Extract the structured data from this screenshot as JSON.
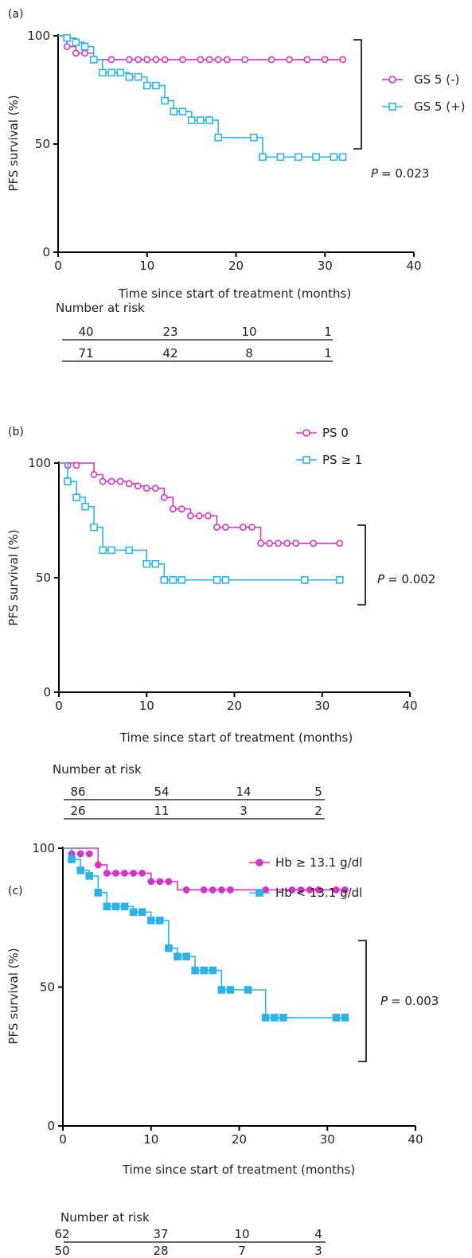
{
  "chart_data": [
    {
      "type": "line",
      "panel_label": "(a)",
      "xlabel": "Time since start of treatment (months)",
      "ylabel": "PFS survival (%)",
      "xlim": [
        0,
        40
      ],
      "ylim": [
        0,
        100
      ],
      "xticks": [
        "0",
        "10",
        "20",
        "30",
        "40"
      ],
      "yticks": [
        "0",
        "50",
        "100"
      ],
      "series": [
        {
          "name": "GS 5 (-)",
          "color": "#d633c8",
          "marker": "circle-open",
          "steps": [
            [
              0,
              100
            ],
            [
              1,
              95
            ],
            [
              2,
              92
            ],
            [
              4,
              89
            ],
            [
              32,
              89
            ]
          ],
          "censor": [
            [
              1,
              95
            ],
            [
              2,
              92
            ],
            [
              3,
              92
            ],
            [
              4,
              89
            ],
            [
              6,
              89
            ],
            [
              8,
              89
            ],
            [
              9,
              89
            ],
            [
              10,
              89
            ],
            [
              11,
              89
            ],
            [
              12,
              89
            ],
            [
              14,
              89
            ],
            [
              16,
              89
            ],
            [
              17,
              89
            ],
            [
              18,
              89
            ],
            [
              19,
              89
            ],
            [
              21,
              89
            ],
            [
              24,
              89
            ],
            [
              26,
              89
            ],
            [
              28,
              89
            ],
            [
              30,
              89
            ],
            [
              32,
              89
            ]
          ]
        },
        {
          "name": "GS 5 (+)",
          "color": "#29b4ea",
          "marker": "square-open",
          "steps": [
            [
              0,
              100
            ],
            [
              1,
              99
            ],
            [
              2,
              97
            ],
            [
              3,
              95
            ],
            [
              4,
              89
            ],
            [
              5,
              83
            ],
            [
              8,
              81
            ],
            [
              10,
              77
            ],
            [
              12,
              70
            ],
            [
              13,
              65
            ],
            [
              15,
              61
            ],
            [
              18,
              53
            ],
            [
              23,
              44
            ],
            [
              32,
              44
            ]
          ],
          "censor": [
            [
              1,
              99
            ],
            [
              2,
              97
            ],
            [
              3,
              95
            ],
            [
              4,
              89
            ],
            [
              5,
              83
            ],
            [
              6,
              83
            ],
            [
              7,
              83
            ],
            [
              8,
              81
            ],
            [
              9,
              81
            ],
            [
              10,
              77
            ],
            [
              11,
              77
            ],
            [
              12,
              70
            ],
            [
              13,
              65
            ],
            [
              14,
              65
            ],
            [
              15,
              61
            ],
            [
              16,
              61
            ],
            [
              17,
              61
            ],
            [
              18,
              53
            ],
            [
              22,
              53
            ],
            [
              23,
              44
            ],
            [
              25,
              44
            ],
            [
              27,
              44
            ],
            [
              29,
              44
            ],
            [
              31,
              44
            ],
            [
              32,
              44
            ]
          ]
        }
      ],
      "pvalue": "= 0.023",
      "p_letter": "P",
      "legend_position": "right",
      "risk_title": "Number at risk",
      "risk_rows": [
        [
          "40",
          "23",
          "10",
          "1"
        ],
        [
          "71",
          "42",
          "8",
          "1"
        ]
      ]
    },
    {
      "type": "line",
      "panel_label": "(b)",
      "xlabel": "Time since start of treatment (months)",
      "ylabel": "PFS survival (%)",
      "xlim": [
        0,
        40
      ],
      "ylim": [
        0,
        100
      ],
      "xticks": [
        "0",
        "10",
        "20",
        "30",
        "40"
      ],
      "yticks": [
        "0",
        "50",
        "100"
      ],
      "series": [
        {
          "name": "PS 0",
          "color": "#d633c8",
          "marker": "circle-open",
          "steps": [
            [
              0,
              100
            ],
            [
              4,
              95
            ],
            [
              5,
              92
            ],
            [
              8,
              91
            ],
            [
              9,
              90
            ],
            [
              10,
              89
            ],
            [
              12,
              85
            ],
            [
              13,
              80
            ],
            [
              15,
              77
            ],
            [
              18,
              72
            ],
            [
              23,
              65
            ],
            [
              32,
              65
            ]
          ],
          "censor": [
            [
              1,
              99
            ],
            [
              2,
              99
            ],
            [
              4,
              95
            ],
            [
              5,
              92
            ],
            [
              6,
              92
            ],
            [
              7,
              92
            ],
            [
              8,
              91
            ],
            [
              9,
              90
            ],
            [
              10,
              89
            ],
            [
              11,
              89
            ],
            [
              12,
              85
            ],
            [
              13,
              80
            ],
            [
              14,
              80
            ],
            [
              15,
              77
            ],
            [
              16,
              77
            ],
            [
              17,
              77
            ],
            [
              18,
              72
            ],
            [
              19,
              72
            ],
            [
              21,
              72
            ],
            [
              22,
              72
            ],
            [
              23,
              65
            ],
            [
              24,
              65
            ],
            [
              25,
              65
            ],
            [
              26,
              65
            ],
            [
              27,
              65
            ],
            [
              29,
              65
            ],
            [
              32,
              65
            ]
          ]
        },
        {
          "name": "PS ≥ 1",
          "color": "#29b4ea",
          "marker": "square-open",
          "steps": [
            [
              0,
              100
            ],
            [
              1,
              92
            ],
            [
              2,
              85
            ],
            [
              3,
              81
            ],
            [
              4,
              72
            ],
            [
              5,
              62
            ],
            [
              8,
              62
            ],
            [
              10,
              56
            ],
            [
              12,
              49
            ],
            [
              32,
              49
            ]
          ],
          "censor": [
            [
              1,
              92
            ],
            [
              2,
              85
            ],
            [
              3,
              81
            ],
            [
              4,
              72
            ],
            [
              5,
              62
            ],
            [
              6,
              62
            ],
            [
              8,
              62
            ],
            [
              10,
              56
            ],
            [
              11,
              56
            ],
            [
              12,
              49
            ],
            [
              13,
              49
            ],
            [
              14,
              49
            ],
            [
              18,
              49
            ],
            [
              19,
              49
            ],
            [
              28,
              49
            ],
            [
              32,
              49
            ]
          ]
        }
      ],
      "pvalue": "= 0.002",
      "p_letter": "P",
      "legend_position": "top",
      "risk_title": "Number at risk",
      "risk_rows": [
        [
          "86",
          "54",
          "14",
          "5"
        ],
        [
          "26",
          "11",
          "3",
          "2"
        ]
      ]
    },
    {
      "type": "line",
      "panel_label": "(c)",
      "xlabel": "Time since start of treatment (months)",
      "ylabel": "PFS survival (%)",
      "xlim": [
        0,
        40
      ],
      "ylim": [
        0,
        100
      ],
      "xticks": [
        "0",
        "10",
        "20",
        "30",
        "40"
      ],
      "yticks": [
        "0",
        "50",
        "100"
      ],
      "series": [
        {
          "name": "Hb ≥ 13.1 g/dl",
          "color": "#d633c8",
          "marker": "circle-filled",
          "steps": [
            [
              0,
              100
            ],
            [
              4,
              94
            ],
            [
              5,
              91
            ],
            [
              10,
              88
            ],
            [
              13,
              85
            ],
            [
              32,
              85
            ]
          ],
          "censor": [
            [
              1,
              98
            ],
            [
              2,
              98
            ],
            [
              3,
              98
            ],
            [
              4,
              94
            ],
            [
              5,
              91
            ],
            [
              6,
              91
            ],
            [
              7,
              91
            ],
            [
              8,
              91
            ],
            [
              9,
              91
            ],
            [
              10,
              88
            ],
            [
              11,
              88
            ],
            [
              12,
              88
            ],
            [
              14,
              85
            ],
            [
              16,
              85
            ],
            [
              17,
              85
            ],
            [
              18,
              85
            ],
            [
              19,
              85
            ],
            [
              23,
              85
            ],
            [
              26,
              85
            ],
            [
              27,
              85
            ],
            [
              28,
              85
            ],
            [
              29,
              85
            ],
            [
              31,
              85
            ],
            [
              32,
              85
            ]
          ]
        },
        {
          "name": "Hb < 13.1 g/dl",
          "color": "#29b4ea",
          "marker": "square-filled",
          "steps": [
            [
              0,
              100
            ],
            [
              1,
              96
            ],
            [
              2,
              92
            ],
            [
              3,
              90
            ],
            [
              4,
              84
            ],
            [
              5,
              79
            ],
            [
              8,
              77
            ],
            [
              10,
              74
            ],
            [
              12,
              64
            ],
            [
              13,
              61
            ],
            [
              15,
              56
            ],
            [
              18,
              49
            ],
            [
              23,
              39
            ],
            [
              32,
              39
            ]
          ],
          "censor": [
            [
              1,
              96
            ],
            [
              2,
              92
            ],
            [
              3,
              90
            ],
            [
              4,
              84
            ],
            [
              5,
              79
            ],
            [
              6,
              79
            ],
            [
              7,
              79
            ],
            [
              8,
              77
            ],
            [
              9,
              77
            ],
            [
              10,
              74
            ],
            [
              11,
              74
            ],
            [
              12,
              64
            ],
            [
              13,
              61
            ],
            [
              14,
              61
            ],
            [
              15,
              56
            ],
            [
              16,
              56
            ],
            [
              17,
              56
            ],
            [
              18,
              49
            ],
            [
              19,
              49
            ],
            [
              21,
              49
            ],
            [
              23,
              39
            ],
            [
              24,
              39
            ],
            [
              25,
              39
            ],
            [
              31,
              39
            ],
            [
              32,
              39
            ]
          ]
        }
      ],
      "pvalue": "= 0.003",
      "p_letter": "P",
      "legend_position": "top",
      "risk_title": "Number at risk",
      "risk_rows": [
        [
          "62",
          "37",
          "10",
          "4"
        ],
        [
          "50",
          "28",
          "7",
          "3"
        ]
      ]
    }
  ]
}
